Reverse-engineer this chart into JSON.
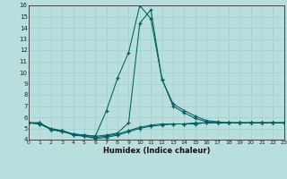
{
  "title": "",
  "xlabel": "Humidex (Indice chaleur)",
  "bg_color": "#b8dede",
  "grid_color": "#9fcfcf",
  "line_color": "#006060",
  "xlim": [
    0,
    23
  ],
  "ylim": [
    4,
    16
  ],
  "xticks": [
    0,
    1,
    2,
    3,
    4,
    5,
    6,
    7,
    8,
    9,
    10,
    11,
    12,
    13,
    14,
    15,
    16,
    17,
    18,
    19,
    20,
    21,
    22,
    23
  ],
  "yticks": [
    4,
    5,
    6,
    7,
    8,
    9,
    10,
    11,
    12,
    13,
    14,
    15,
    16
  ],
  "line1_x": [
    0,
    1,
    2,
    3,
    4,
    5,
    6,
    7,
    8,
    9,
    10,
    11,
    12,
    13,
    14,
    15,
    16,
    17,
    18,
    19,
    20,
    21,
    22,
    23
  ],
  "line1_y": [
    5.5,
    5.5,
    4.9,
    4.7,
    4.5,
    4.4,
    4.3,
    6.6,
    9.5,
    11.8,
    16.0,
    14.8,
    9.4,
    7.2,
    6.6,
    6.1,
    5.7,
    5.6,
    5.5,
    5.5,
    5.5,
    5.5,
    5.5,
    5.5
  ],
  "line2_x": [
    0,
    1,
    2,
    3,
    4,
    5,
    6,
    7,
    8,
    9,
    10,
    11,
    12,
    13,
    14,
    15,
    16,
    17,
    18,
    19,
    20,
    21,
    22,
    23
  ],
  "line2_y": [
    5.5,
    5.5,
    4.9,
    4.8,
    4.5,
    4.4,
    4.3,
    4.4,
    4.6,
    5.5,
    14.4,
    15.6,
    9.4,
    7.0,
    6.4,
    5.9,
    5.6,
    5.5,
    5.5,
    5.5,
    5.5,
    5.5,
    5.5,
    5.5
  ],
  "line3_x": [
    0,
    1,
    2,
    3,
    4,
    5,
    6,
    7,
    8,
    9,
    10,
    11,
    12,
    13,
    14,
    15,
    16,
    17,
    18,
    19,
    20,
    21,
    22,
    23
  ],
  "line3_y": [
    5.5,
    5.4,
    5.0,
    4.8,
    4.5,
    4.3,
    4.2,
    4.3,
    4.5,
    4.8,
    5.1,
    5.3,
    5.4,
    5.4,
    5.4,
    5.5,
    5.5,
    5.5,
    5.5,
    5.5,
    5.5,
    5.5,
    5.5,
    5.5
  ],
  "line4_x": [
    0,
    1,
    2,
    3,
    4,
    5,
    6,
    7,
    8,
    9,
    10,
    11,
    12,
    13,
    14,
    15,
    16,
    17,
    18,
    19,
    20,
    21,
    22,
    23
  ],
  "line4_y": [
    5.5,
    5.4,
    4.9,
    4.8,
    4.4,
    4.3,
    4.1,
    4.2,
    4.4,
    4.7,
    5.0,
    5.2,
    5.3,
    5.4,
    5.4,
    5.4,
    5.5,
    5.5,
    5.5,
    5.5,
    5.5,
    5.5,
    5.5,
    5.5
  ]
}
